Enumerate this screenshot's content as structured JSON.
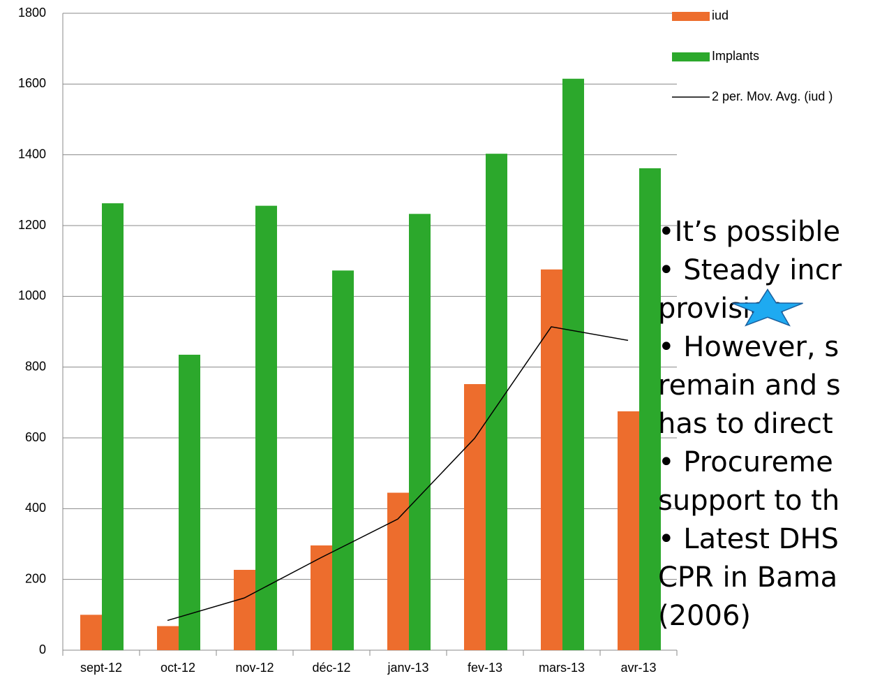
{
  "chart_data": {
    "type": "bar",
    "categories": [
      "sept-12",
      "oct-12",
      "nov-12",
      "déc-12",
      "janv-13",
      "fev-13",
      "mars-13",
      "avr-13"
    ],
    "series": [
      {
        "name": "iud",
        "color": "#ed6d2d",
        "values": [
          100,
          68,
          227,
          296,
          445,
          752,
          1076,
          675
        ]
      },
      {
        "name": "Implants",
        "color": "#2ca82c",
        "values": [
          1263,
          835,
          1256,
          1073,
          1233,
          1403,
          1615,
          1362
        ]
      }
    ],
    "trendline": {
      "name": "2 per. Mov. Avg. (iud )",
      "color": "#000000",
      "values": [
        null,
        84,
        147.5,
        261.5,
        370.5,
        598.5,
        914,
        875.5
      ]
    },
    "ylim": [
      0,
      1800
    ],
    "yticks": [
      0,
      200,
      400,
      600,
      800,
      1000,
      1200,
      1400,
      1600,
      1800
    ],
    "grid": true,
    "legend": "top-right"
  },
  "notes": [
    "•It’s possible",
    "• Steady incr",
    "provision",
    "• However, s",
    "remain and s",
    "has to direct",
    "• Procureme",
    "support to th",
    "• Latest DHS",
    "CPR in Bama",
    "(2006)"
  ]
}
